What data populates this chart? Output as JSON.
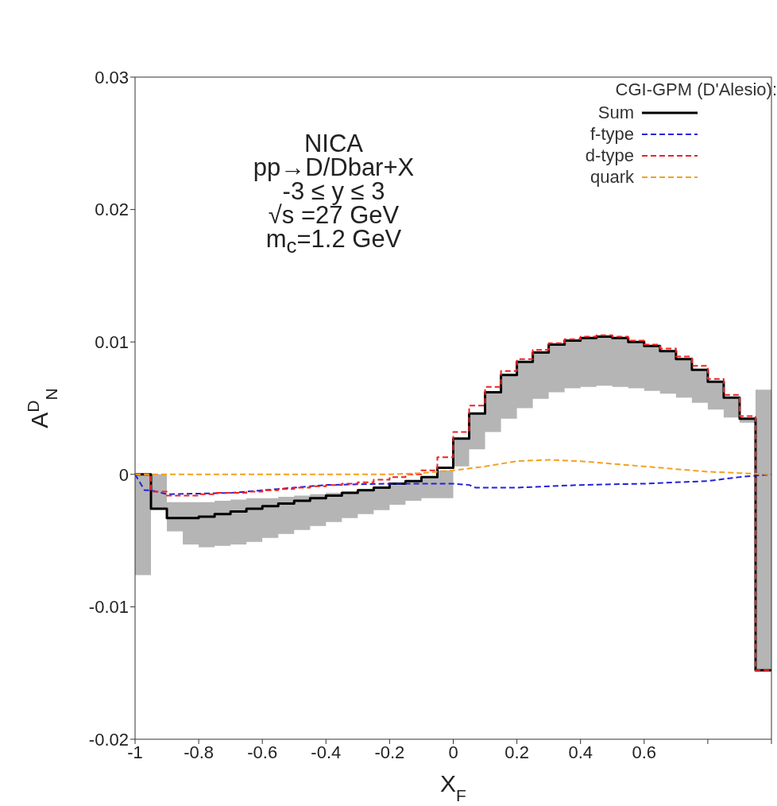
{
  "chart_data": {
    "type": "step",
    "xlabel": "X$_{F}$",
    "ylabel": "A$^{D}$$_{N}$",
    "legend_title": "CGI-GPM (D'Alesio):",
    "annotations": [
      "NICA",
      "pp→D/Dbar+X",
      "-3 ≤ y ≤ 3",
      "√s =27 GeV",
      "m$_{c}$=1.2 GeV"
    ],
    "x": [
      -1,
      -0.95,
      -0.9,
      -0.85,
      -0.8,
      -0.75,
      -0.7,
      -0.65,
      -0.6,
      -0.55,
      -0.5,
      -0.45,
      -0.4,
      -0.35,
      -0.3,
      -0.25,
      -0.2,
      -0.15,
      -0.1,
      -0.05,
      0,
      0.05,
      0.1,
      0.15,
      0.2,
      0.25,
      0.3,
      0.35,
      0.4,
      0.45,
      0.5,
      0.55,
      0.6,
      0.65,
      0.7,
      0.75,
      0.8,
      0.85,
      0.9,
      0.95,
      1
    ],
    "series": [
      {
        "name": "Sum",
        "color": "#000000",
        "line_style": "solid",
        "values": [
          0,
          -0.0026,
          -0.0033,
          -0.0033,
          -0.0032,
          -0.003,
          -0.0028,
          -0.0026,
          -0.0024,
          -0.0022,
          -0.002,
          -0.0018,
          -0.0016,
          -0.0014,
          -0.0012,
          -0.001,
          -0.0007,
          -0.0005,
          -0.0002,
          0.0005,
          0.0027,
          0.0046,
          0.0062,
          0.0075,
          0.0085,
          0.0092,
          0.0098,
          0.0101,
          0.0103,
          0.0104,
          0.0103,
          0.01,
          0.0097,
          0.0093,
          0.0087,
          0.0079,
          0.007,
          0.0058,
          0.0042,
          -0.0148,
          -0.0148
        ],
        "lower": [
          -0.0076,
          -0.0026,
          -0.0043,
          -0.0053,
          -0.0055,
          -0.0054,
          -0.0053,
          -0.0051,
          -0.0048,
          -0.0045,
          -0.0042,
          -0.0039,
          -0.0036,
          -0.0033,
          -0.003,
          -0.0027,
          -0.0023,
          -0.002,
          -0.0018,
          -0.0018,
          0.0006,
          0.0019,
          0.0032,
          0.0042,
          0.005,
          0.0057,
          0.0062,
          0.0065,
          0.0066,
          0.0067,
          0.0066,
          0.0065,
          0.0063,
          0.0061,
          0.0058,
          0.0054,
          0.0049,
          0.0043,
          0.0039,
          -0.0148,
          -0.0148
        ],
        "upper": [
          0,
          0,
          -0.0021,
          -0.0021,
          -0.0021,
          -0.002,
          -0.0019,
          -0.0018,
          -0.0018,
          -0.0017,
          -0.0016,
          -0.0015,
          -0.0014,
          -0.0013,
          -0.0011,
          -0.001,
          -0.0008,
          -0.0006,
          -0.0003,
          0.0003,
          0.0027,
          0.0046,
          0.0062,
          0.0075,
          0.0085,
          0.0092,
          0.0098,
          0.0101,
          0.0103,
          0.0104,
          0.0103,
          0.01,
          0.0097,
          0.0093,
          0.0087,
          0.0079,
          0.007,
          0.0058,
          0.0042,
          0.0064,
          0.0064
        ]
      },
      {
        "name": "f-type",
        "type": "line",
        "color": "#2222dd",
        "line_style": "dashed",
        "x": [
          -1,
          -0.97,
          -0.95,
          -0.9,
          -0.7,
          -0.55,
          -0.4,
          -0.2,
          0,
          0.05,
          0.07,
          0.1,
          0.2,
          0.4,
          0.6,
          0.8,
          0.9,
          0.95,
          1
        ],
        "values": [
          0,
          -0.0012,
          -0.0012,
          -0.0015,
          -0.0014,
          -0.0011,
          -0.0008,
          -0.0007,
          -0.0007,
          -0.0008,
          -0.001,
          -0.001,
          -0.001,
          -0.0008,
          -0.0007,
          -0.0005,
          -0.0002,
          -0.0001,
          0
        ]
      },
      {
        "name": "d-type",
        "color": "#ee2222",
        "line_style": "dashed",
        "values": [
          0,
          -0.0013,
          -0.0016,
          -0.0016,
          -0.0015,
          -0.0014,
          -0.0014,
          -0.0013,
          -0.0012,
          -0.0011,
          -0.001,
          -0.0009,
          -0.0008,
          -0.0007,
          -0.0006,
          -0.0004,
          -0.0002,
          0,
          0.0003,
          0.0013,
          0.0032,
          0.0052,
          0.0066,
          0.0078,
          0.0087,
          0.0094,
          0.0099,
          0.0102,
          0.0104,
          0.0105,
          0.0104,
          0.0101,
          0.0098,
          0.0095,
          0.0089,
          0.0082,
          0.0072,
          0.006,
          0.0044,
          -0.0148,
          -0.0148
        ]
      },
      {
        "name": "quark",
        "type": "line",
        "color": "#f5a020",
        "line_style": "dashed",
        "x": [
          -1,
          -0.2,
          -0.1,
          0,
          0.1,
          0.2,
          0.3,
          0.4,
          0.5,
          0.6,
          0.7,
          0.8,
          0.9,
          1
        ],
        "values": [
          0,
          0,
          0.0001,
          0.0003,
          0.0006,
          0.001,
          0.0011,
          0.001,
          0.0008,
          0.0006,
          0.0004,
          0.0002,
          0.0001,
          0
        ]
      }
    ],
    "xlim": [
      -1,
      1
    ],
    "xticks": [
      -1,
      -0.8,
      -0.6,
      -0.4,
      -0.2,
      0,
      0.2,
      0.4,
      0.6,
      {
        "value": 0.8,
        "label": null
      },
      {
        "value": 1,
        "label": null
      }
    ],
    "ylim": [
      -0.02,
      0.03
    ],
    "yticks": [
      -0.02,
      -0.01,
      0,
      0.01,
      0.02,
      0.03
    ],
    "grid": false,
    "legend": "top right",
    "marker": "none"
  }
}
